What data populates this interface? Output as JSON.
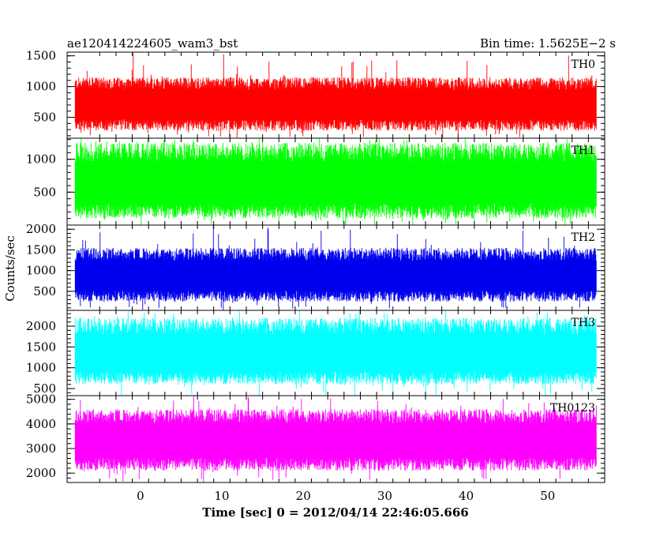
{
  "header": {
    "title": "ae120414224605_wam3_bst",
    "bin_time": "Bin time: 1.5625E−2 s"
  },
  "chart_data": {
    "type": "line",
    "title": "ae120414224605_wam3_bst",
    "xlabel": "Time [sec] 0 = 2012/04/14 22:46:05.666",
    "ylabel": "Counts/sec",
    "xlim": [
      -9,
      57
    ],
    "x_ticks": [
      0,
      10,
      20,
      30,
      40,
      50
    ],
    "x_tick_labels": [
      "0",
      "10",
      "20",
      "30",
      "40",
      "50"
    ],
    "data_x_range": [
      -8,
      56
    ],
    "bin_time_s": 0.015625,
    "panels": [
      {
        "name": "TH0",
        "color": "#ff0000",
        "ylim": [
          160,
          1560
        ],
        "y_ticks": [
          500,
          1000,
          1500
        ],
        "y_tick_labels": [
          "500",
          "1000",
          "1500"
        ],
        "mean": 700,
        "typical_low": 280,
        "typical_high": 1150,
        "peak_high": 1560
      },
      {
        "name": "TH1",
        "color": "#00ff00",
        "ylim": [
          0,
          1320
        ],
        "y_ticks": [
          500,
          1000
        ],
        "y_tick_labels": [
          "500",
          "1000"
        ],
        "mean": 600,
        "typical_low": 100,
        "typical_high": 1250,
        "peak_high": 1320
      },
      {
        "name": "TH2",
        "color": "#0000ee",
        "ylim": [
          40,
          2100
        ],
        "y_ticks": [
          500,
          1000,
          1500,
          2000
        ],
        "y_tick_labels": [
          "500",
          "1000",
          "1500",
          "2000"
        ],
        "mean": 850,
        "typical_low": 250,
        "typical_high": 1550,
        "peak_high": 2100
      },
      {
        "name": "TH3",
        "color": "#00ffff",
        "ylim": [
          330,
          2380
        ],
        "y_ticks": [
          500,
          1000,
          1500,
          2000
        ],
        "y_tick_labels": [
          "500",
          "1000",
          "1500",
          "2000"
        ],
        "mean": 1300,
        "typical_low": 600,
        "typical_high": 2200,
        "peak_high": 2380
      },
      {
        "name": "TH0123",
        "color": "#ff00ff",
        "ylim": [
          1620,
          5150
        ],
        "y_ticks": [
          2000,
          3000,
          4000,
          5000
        ],
        "y_tick_labels": [
          "2000",
          "3000",
          "4000",
          "5000"
        ],
        "mean": 3300,
        "typical_low": 2100,
        "typical_high": 4600,
        "peak_high": 5150
      }
    ]
  }
}
